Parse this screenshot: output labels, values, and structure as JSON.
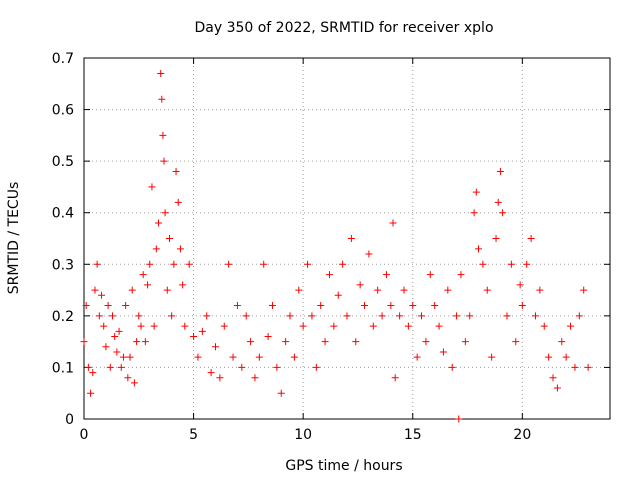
{
  "chart_data": {
    "type": "scatter",
    "title": "Day 350 of 2022, SRMTID for receiver xplo",
    "xlabel": "GPS time / hours",
    "ylabel": "SRMTID / TECUs",
    "xlim": [
      0,
      24
    ],
    "ylim": [
      0,
      0.7
    ],
    "x_ticks": [
      "0",
      "5",
      "10",
      "15",
      "20"
    ],
    "y_ticks": [
      "0",
      "0.1",
      "0.2",
      "0.3",
      "0.4",
      "0.5",
      "0.6",
      "0.7"
    ],
    "grid": true,
    "marker": "plus",
    "color": "#ff0000",
    "series": [
      {
        "name": "SRMTID",
        "points": [
          [
            0.0,
            0.15
          ],
          [
            0.1,
            0.22
          ],
          [
            0.2,
            0.1
          ],
          [
            0.3,
            0.05
          ],
          [
            0.4,
            0.09
          ],
          [
            0.5,
            0.25
          ],
          [
            0.6,
            0.3
          ],
          [
            0.7,
            0.2
          ],
          [
            0.8,
            0.24
          ],
          [
            0.9,
            0.18
          ],
          [
            1.0,
            0.14
          ],
          [
            1.1,
            0.22
          ],
          [
            1.2,
            0.1
          ],
          [
            1.3,
            0.2
          ],
          [
            1.4,
            0.16
          ],
          [
            1.5,
            0.13
          ],
          [
            1.6,
            0.17
          ],
          [
            1.7,
            0.1
          ],
          [
            1.8,
            0.12
          ],
          [
            1.9,
            0.22
          ],
          [
            2.0,
            0.08
          ],
          [
            2.1,
            0.12
          ],
          [
            2.2,
            0.25
          ],
          [
            2.3,
            0.07
          ],
          [
            2.4,
            0.15
          ],
          [
            2.5,
            0.2
          ],
          [
            2.6,
            0.18
          ],
          [
            2.7,
            0.28
          ],
          [
            2.8,
            0.15
          ],
          [
            2.9,
            0.26
          ],
          [
            3.0,
            0.3
          ],
          [
            3.1,
            0.45
          ],
          [
            3.2,
            0.18
          ],
          [
            3.3,
            0.33
          ],
          [
            3.4,
            0.38
          ],
          [
            3.5,
            0.67
          ],
          [
            3.55,
            0.62
          ],
          [
            3.6,
            0.55
          ],
          [
            3.65,
            0.5
          ],
          [
            3.7,
            0.4
          ],
          [
            3.8,
            0.25
          ],
          [
            3.9,
            0.35
          ],
          [
            4.0,
            0.2
          ],
          [
            4.1,
            0.3
          ],
          [
            4.2,
            0.48
          ],
          [
            4.3,
            0.42
          ],
          [
            4.4,
            0.33
          ],
          [
            4.5,
            0.26
          ],
          [
            4.6,
            0.18
          ],
          [
            4.8,
            0.3
          ],
          [
            5.0,
            0.16
          ],
          [
            5.2,
            0.12
          ],
          [
            5.4,
            0.17
          ],
          [
            5.6,
            0.2
          ],
          [
            5.8,
            0.09
          ],
          [
            6.0,
            0.14
          ],
          [
            6.2,
            0.08
          ],
          [
            6.4,
            0.18
          ],
          [
            6.6,
            0.3
          ],
          [
            6.8,
            0.12
          ],
          [
            7.0,
            0.22
          ],
          [
            7.2,
            0.1
          ],
          [
            7.4,
            0.2
          ],
          [
            7.6,
            0.15
          ],
          [
            7.8,
            0.08
          ],
          [
            8.0,
            0.12
          ],
          [
            8.2,
            0.3
          ],
          [
            8.4,
            0.16
          ],
          [
            8.6,
            0.22
          ],
          [
            8.8,
            0.1
          ],
          [
            9.0,
            0.05
          ],
          [
            9.2,
            0.15
          ],
          [
            9.4,
            0.2
          ],
          [
            9.6,
            0.12
          ],
          [
            9.8,
            0.25
          ],
          [
            10.0,
            0.18
          ],
          [
            10.2,
            0.3
          ],
          [
            10.4,
            0.2
          ],
          [
            10.6,
            0.1
          ],
          [
            10.8,
            0.22
          ],
          [
            11.0,
            0.15
          ],
          [
            11.2,
            0.28
          ],
          [
            11.4,
            0.18
          ],
          [
            11.6,
            0.24
          ],
          [
            11.8,
            0.3
          ],
          [
            12.0,
            0.2
          ],
          [
            12.2,
            0.35
          ],
          [
            12.4,
            0.15
          ],
          [
            12.6,
            0.26
          ],
          [
            12.8,
            0.22
          ],
          [
            13.0,
            0.32
          ],
          [
            13.2,
            0.18
          ],
          [
            13.4,
            0.25
          ],
          [
            13.6,
            0.2
          ],
          [
            13.8,
            0.28
          ],
          [
            14.0,
            0.22
          ],
          [
            14.1,
            0.38
          ],
          [
            14.2,
            0.08
          ],
          [
            14.4,
            0.2
          ],
          [
            14.6,
            0.25
          ],
          [
            14.8,
            0.18
          ],
          [
            15.0,
            0.22
          ],
          [
            15.2,
            0.12
          ],
          [
            15.4,
            0.2
          ],
          [
            15.6,
            0.15
          ],
          [
            15.8,
            0.28
          ],
          [
            16.0,
            0.22
          ],
          [
            16.2,
            0.18
          ],
          [
            16.4,
            0.13
          ],
          [
            16.6,
            0.25
          ],
          [
            16.8,
            0.1
          ],
          [
            17.0,
            0.2
          ],
          [
            17.1,
            0.0
          ],
          [
            17.2,
            0.28
          ],
          [
            17.4,
            0.15
          ],
          [
            17.6,
            0.2
          ],
          [
            17.8,
            0.4
          ],
          [
            17.9,
            0.44
          ],
          [
            18.0,
            0.33
          ],
          [
            18.2,
            0.3
          ],
          [
            18.4,
            0.25
          ],
          [
            18.6,
            0.12
          ],
          [
            18.8,
            0.35
          ],
          [
            18.9,
            0.42
          ],
          [
            19.0,
            0.48
          ],
          [
            19.1,
            0.4
          ],
          [
            19.3,
            0.2
          ],
          [
            19.5,
            0.3
          ],
          [
            19.7,
            0.15
          ],
          [
            19.9,
            0.26
          ],
          [
            20.0,
            0.22
          ],
          [
            20.2,
            0.3
          ],
          [
            20.4,
            0.35
          ],
          [
            20.6,
            0.2
          ],
          [
            20.8,
            0.25
          ],
          [
            21.0,
            0.18
          ],
          [
            21.2,
            0.12
          ],
          [
            21.4,
            0.08
          ],
          [
            21.6,
            0.06
          ],
          [
            21.8,
            0.15
          ],
          [
            22.0,
            0.12
          ],
          [
            22.2,
            0.18
          ],
          [
            22.4,
            0.1
          ],
          [
            22.6,
            0.2
          ],
          [
            22.8,
            0.25
          ],
          [
            23.0,
            0.1
          ]
        ]
      }
    ]
  }
}
